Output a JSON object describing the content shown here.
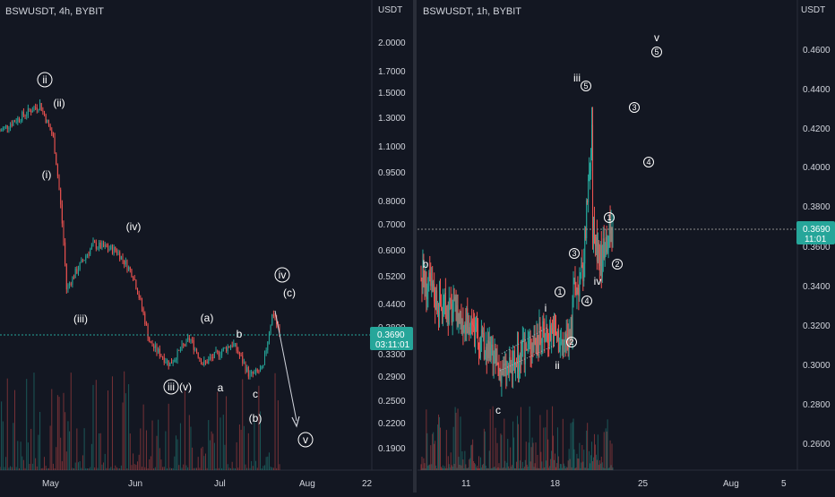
{
  "left": {
    "title": "BSWUSDT, 4h, BYBIT",
    "currency": "USDT",
    "price_ticks": [
      "2.0000",
      "1.7000",
      "1.5000",
      "1.3000",
      "1.1000",
      "0.9500",
      "0.8000",
      "0.7000",
      "0.6000",
      "0.5200",
      "0.4400",
      "0.3800",
      "0.3300",
      "0.2900",
      "0.2500",
      "0.2200",
      "0.1900"
    ],
    "date_ticks": [
      "May",
      "Jun",
      "Jul",
      "Aug",
      "22"
    ],
    "last_price": "0.3690",
    "countdown": "03:11:01",
    "wave_labels": {
      "circ_ii": "ii",
      "p_ii": "(ii)",
      "p_i": "(i)",
      "p_iv": "(iv)",
      "p_iii": "(iii)",
      "circ_iii": "iii",
      "p_v": "(v)",
      "p_a": "(a)",
      "a": "a",
      "b": "b",
      "c": "c",
      "p_b": "(b)",
      "circ_iv": "iv",
      "p_c": "(c)",
      "circ_v": "v"
    }
  },
  "right": {
    "title": "BSWUSDT, 1h, BYBIT",
    "currency": "USDT",
    "price_ticks": [
      "0.4600",
      "0.4400",
      "0.4200",
      "0.4000",
      "0.3800",
      "0.3600",
      "0.3400",
      "0.3200",
      "0.3000",
      "0.2800",
      "0.2600"
    ],
    "date_ticks": [
      "11",
      "18",
      "25",
      "Aug",
      "5"
    ],
    "last_price": "0.3690",
    "countdown": "11:01",
    "wave_labels": {
      "b": "b",
      "c": "c",
      "i": "i",
      "ii": "ii",
      "iii": "iii",
      "iv": "iv",
      "v": "v",
      "c1a": "1",
      "c2a": "2",
      "c3a": "3",
      "c4a": "4",
      "c5": "5",
      "c3b": "3",
      "c4b": "4",
      "c1b": "1",
      "c2b": "2"
    }
  },
  "chart_data": [
    {
      "type": "candlestick",
      "title": "BSWUSDT, 4h, BYBIT",
      "y_scale": "log",
      "ylim": [
        0.17,
        2.3
      ],
      "x_range": [
        "Apr 22",
        "Aug 22"
      ],
      "last_price": 0.369,
      "path_points": [
        [
          "Apr 22",
          1.2
        ],
        [
          "May 4",
          1.4
        ],
        [
          "May 8",
          1.15
        ],
        [
          "May 12",
          0.48
        ],
        [
          "May 20",
          0.62
        ],
        [
          "May 27",
          0.6
        ],
        [
          "Jun 1",
          0.52
        ],
        [
          "Jun 6",
          0.35
        ],
        [
          "Jun 12",
          0.31
        ],
        [
          "Jun 18",
          0.36
        ],
        [
          "Jun 22",
          0.31
        ],
        [
          "Jul 1",
          0.35
        ],
        [
          "Jul 6",
          0.29
        ],
        [
          "Jul 10",
          0.3
        ],
        [
          "Jul 13",
          0.42
        ],
        [
          "Jul 15",
          0.369
        ]
      ],
      "projection": [
        [
          "Jul 13",
          0.42
        ],
        [
          "Jul 20",
          0.22
        ]
      ]
    },
    {
      "type": "candlestick",
      "title": "BSWUSDT, 1h, BYBIT",
      "y_scale": "linear",
      "ylim": [
        0.25,
        0.475
      ],
      "x_range": [
        "Jul 4",
        "Aug 6"
      ],
      "last_price": 0.369,
      "path_points": [
        [
          "Jul 4",
          0.345
        ],
        [
          "Jul 6",
          0.33
        ],
        [
          "Jul 8",
          0.325
        ],
        [
          "Jul 10",
          0.31
        ],
        [
          "Jul 12",
          0.297
        ],
        [
          "Jul 13",
          0.298
        ],
        [
          "Jul 15",
          0.312
        ],
        [
          "Jul 17",
          0.318
        ],
        [
          "Jul 18",
          0.31
        ],
        [
          "Jul 19",
          0.318
        ],
        [
          "Jul 19",
          0.335
        ],
        [
          "Jul 20",
          0.345
        ],
        [
          "Jul 21",
          0.42
        ],
        [
          "Jul 21",
          0.37
        ],
        [
          "Jul 22",
          0.35
        ],
        [
          "Jul 22",
          0.362
        ],
        [
          "Jul 23",
          0.369
        ]
      ]
    }
  ]
}
